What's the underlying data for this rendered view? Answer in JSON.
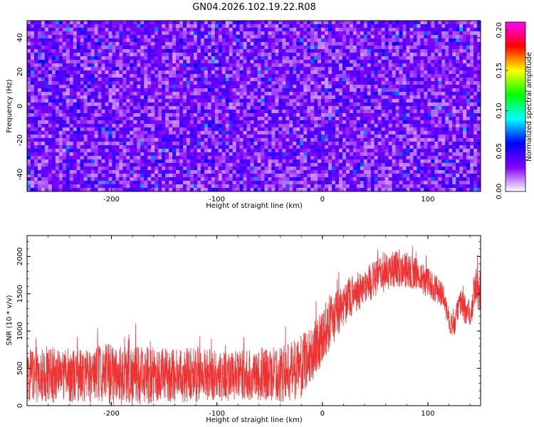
{
  "title": "GN04.2026.102.19.22.R08",
  "chart_data": [
    {
      "type": "heatmap",
      "title": "GN04.2026.102.19.22.R08",
      "xlabel": "Height of straight line (km)",
      "ylabel": "Frequency (Hz)",
      "xlim": [
        -280,
        150
      ],
      "ylim": [
        -50,
        50
      ],
      "x_ticks": [
        -200,
        -100,
        0,
        100
      ],
      "y_ticks": [
        -40,
        -20,
        0,
        20,
        40
      ],
      "colorbar": {
        "label": "Normalized spectral amplitude",
        "range": [
          0,
          0.21
        ],
        "ticks": [
          "0.00",
          "0.05",
          "0.10",
          "0.15",
          "0.20"
        ],
        "colors": [
          "#ffffff",
          "#8000ff",
          "#0000ff",
          "#00ffff",
          "#00ff00",
          "#ffff00",
          "#ff0000",
          "#ff00ff"
        ]
      },
      "description_values": {
        "typical_amplitude": 0.04,
        "background_amplitude": 0.03,
        "max_amplitude": 0.08
      },
      "grid": false
    },
    {
      "type": "line",
      "xlabel": "Height of straight line (km)",
      "ylabel": "SNR (10 * v/v)",
      "xlim": [
        -280,
        150
      ],
      "ylim": [
        0,
        2280
      ],
      "x_ticks": [
        -200,
        -100,
        0,
        100
      ],
      "y_ticks": [
        0,
        500,
        1000,
        1500,
        2000
      ],
      "color": "#ef3333",
      "series": [
        {
          "x": [
            -280,
            -260,
            -240,
            -220,
            -200,
            -180,
            -160,
            -140,
            -120,
            -100,
            -80,
            -60,
            -40,
            -30,
            -20,
            -10,
            0,
            10,
            20,
            30,
            40,
            50,
            60,
            70,
            80,
            90,
            100,
            110,
            115,
            120,
            125,
            130,
            135,
            140,
            145,
            150
          ],
          "mean": [
            400,
            420,
            410,
            400,
            420,
            410,
            400,
            410,
            420,
            400,
            400,
            410,
            420,
            450,
            520,
            700,
            950,
            1150,
            1350,
            1500,
            1600,
            1700,
            1800,
            1850,
            1820,
            1750,
            1650,
            1550,
            1450,
            1150,
            1050,
            1400,
            1300,
            1200,
            1650,
            1500
          ],
          "spread": [
            350,
            380,
            360,
            380,
            420,
            400,
            380,
            360,
            380,
            350,
            330,
            350,
            380,
            400,
            420,
            400,
            380,
            350,
            300,
            280,
            260,
            250,
            260,
            260,
            240,
            220,
            200,
            180,
            160,
            160,
            150,
            180,
            200,
            220,
            260,
            320
          ]
        }
      ],
      "grid": false
    }
  ]
}
